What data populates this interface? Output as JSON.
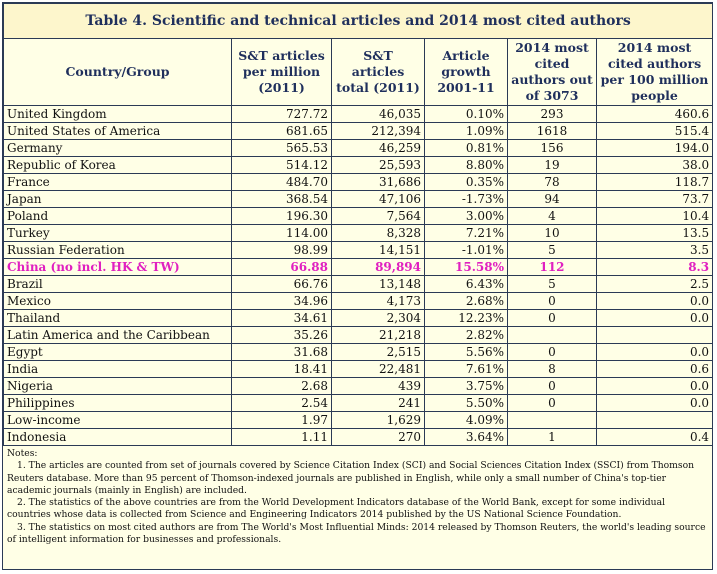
{
  "table": {
    "title": "Table 4. Scientific and technical articles and 2014 most cited authors",
    "headers": [
      "Country/Group",
      "S&T articles per million (2011)",
      "S&T articles total (2011)",
      "Article growth 2001-11",
      "2014 most cited authors out of 3073",
      "2014 most cited authors per 100 million people"
    ],
    "rows": [
      [
        "United Kingdom",
        "727.72",
        "46,035",
        "0.10%",
        "293",
        "460.6"
      ],
      [
        "United States of America",
        "681.65",
        "212,394",
        "1.09%",
        "1618",
        "515.4"
      ],
      [
        "Germany",
        "565.53",
        "46,259",
        "0.81%",
        "156",
        "194.0"
      ],
      [
        "Republic of Korea",
        "514.12",
        "25,593",
        "8.80%",
        "19",
        "38.0"
      ],
      [
        "France",
        "484.70",
        "31,686",
        "0.35%",
        "78",
        "118.7"
      ],
      [
        "Japan",
        "368.54",
        "47,106",
        "-1.73%",
        "94",
        "73.7"
      ],
      [
        "Poland",
        "196.30",
        "7,564",
        "3.00%",
        "4",
        "10.4"
      ],
      [
        "Turkey",
        "114.00",
        "8,328",
        "7.21%",
        "10",
        "13.5"
      ],
      [
        "Russian Federation",
        "98.99",
        "14,151",
        "-1.01%",
        "5",
        "3.5"
      ],
      [
        "China (no incl. HK & TW)",
        "66.88",
        "89,894",
        "15.58%",
        "112",
        "8.3"
      ],
      [
        "Brazil",
        "66.76",
        "13,148",
        "6.43%",
        "5",
        "2.5"
      ],
      [
        "Mexico",
        "34.96",
        "4,173",
        "2.68%",
        "0",
        "0.0"
      ],
      [
        "Thailand",
        "34.61",
        "2,304",
        "12.23%",
        "0",
        "0.0"
      ],
      [
        "Latin America and the Caribbean",
        "35.26",
        "21,218",
        "2.82%"
      ],
      [
        "Egypt",
        "31.68",
        "2,515",
        "5.56%",
        "0",
        "0.0"
      ],
      [
        "India",
        "18.41",
        "22,481",
        "7.61%",
        "8",
        "0.6"
      ],
      [
        "Nigeria",
        "2.68",
        "439",
        "3.75%",
        "0",
        "0.0"
      ],
      [
        "Philippines",
        "2.54",
        "241",
        "5.50%",
        "0",
        "0.0"
      ],
      [
        "Low-income",
        "1.97",
        "1,629",
        "4.09%"
      ],
      [
        "Indonesia",
        "1.11",
        "270",
        "3.64%",
        "1",
        "0.4"
      ]
    ],
    "highlight_row": 9
  },
  "notes": {
    "label": "Notes:",
    "items": [
      "1. The articles are counted from set of journals covered by Science Citation Index (SCI) and Social Sciences Citation Index (SSCI) from Thomson Reuters database. More than 95 percent of Thomson-indexed journals are published in English, while only a small number of China's top-tier academic journals (mainly in English) are included.",
      "2. The statistics of the above countries are from the World Development Indicators database of the World Bank, except for some individual countries whose data is collected from Science and Engineering Indicators 2014 published by the US National Science Foundation.",
      "3. The statistics on most cited authors are from The World's Most Influential Minds: 2014 released by Thomson Reuters, the world's leading source of intelligent information for businesses and professionals."
    ]
  }
}
